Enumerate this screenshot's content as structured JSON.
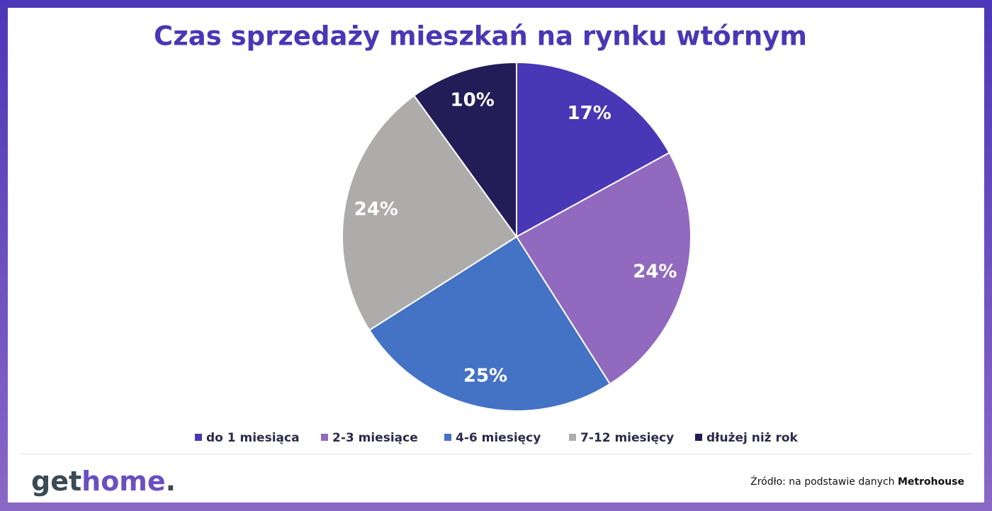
{
  "chart_data": {
    "type": "pie",
    "title": "Czas sprzedaży mieszkań na rynku wtórnym",
    "categories": [
      "do 1 miesiąca",
      "2-3 miesiące",
      "4-6 miesięcy",
      "7-12 miesięcy",
      "dłużej niż rok"
    ],
    "values": [
      17,
      24,
      25,
      24,
      10
    ],
    "value_labels": [
      "17%",
      "24%",
      "25%",
      "24%",
      "10%"
    ],
    "colors": [
      "#4a37b5",
      "#916abf",
      "#4472c4",
      "#aeabab",
      "#221c57"
    ],
    "legend": "bottom"
  },
  "footer": {
    "logo_get": "get",
    "logo_home": "home",
    "logo_dot": ".",
    "source_prefix": "Źródło: na podstawie danych",
    "source_bold": "Metrohouse"
  }
}
